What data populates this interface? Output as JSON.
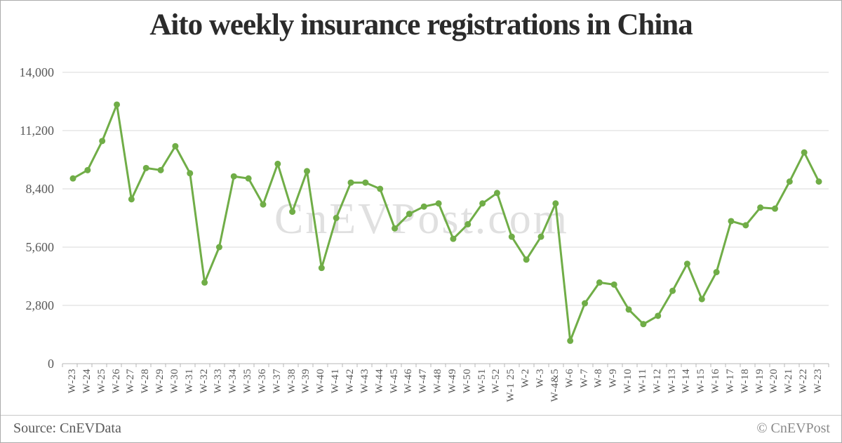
{
  "title": "Aito weekly insurance registrations in China",
  "watermark": "CnEVPost.com",
  "footer": {
    "source": "Source: CnEVData",
    "copyright": "© CnEVPost"
  },
  "colors": {
    "line": "#70ad47",
    "grid": "#d9d9d9",
    "axis": "#b7b7b7",
    "tick": "#b7b7b7"
  },
  "chart_data": {
    "type": "line",
    "title": "Aito weekly insurance registrations in China",
    "xlabel": "",
    "ylabel": "",
    "ylim": [
      0,
      14000
    ],
    "yticks": [
      0,
      2800,
      5600,
      8400,
      11200,
      14000
    ],
    "ytick_labels": [
      "0",
      "2,800",
      "5,600",
      "8,400",
      "11,200",
      "14,000"
    ],
    "grid": true,
    "legend_position": "none",
    "marker": "circle",
    "categories": [
      "W-23",
      "W-24",
      "W-25",
      "W-26",
      "W-27",
      "W-28",
      "W-29",
      "W-30",
      "W-31",
      "W-32",
      "W-33",
      "W-34",
      "W-35",
      "W-36",
      "W-37",
      "W-38",
      "W-39",
      "W-40",
      "W-41",
      "W-42",
      "W-43",
      "W-44",
      "W-45",
      "W-46",
      "W-47",
      "W-48",
      "W-49",
      "W-50",
      "W-51",
      "W-52",
      "W-1 25",
      "W-2",
      "W-3",
      "W-4&5",
      "W-6",
      "W-7",
      "W-8",
      "W-9",
      "W-10",
      "W-11",
      "W-12",
      "W-13",
      "W-14",
      "W-15",
      "W-16",
      "W-17",
      "W-18",
      "W-19",
      "W-20",
      "W-21",
      "W-22",
      "W-23"
    ],
    "series": [
      {
        "name": "Aito weekly insurance registrations",
        "values": [
          8900,
          9300,
          10700,
          12450,
          7900,
          9400,
          9300,
          10450,
          9150,
          3900,
          5600,
          9000,
          8900,
          7650,
          9600,
          7300,
          9250,
          4600,
          7000,
          8700,
          8700,
          8400,
          6500,
          7200,
          7550,
          7700,
          6000,
          6700,
          7700,
          8200,
          6100,
          5000,
          6100,
          7700,
          1100,
          2900,
          3900,
          3800,
          2600,
          1900,
          2300,
          3500,
          4800,
          3100,
          4400,
          6850,
          6650,
          7500,
          7450,
          8750,
          10150,
          8750
        ]
      }
    ]
  }
}
